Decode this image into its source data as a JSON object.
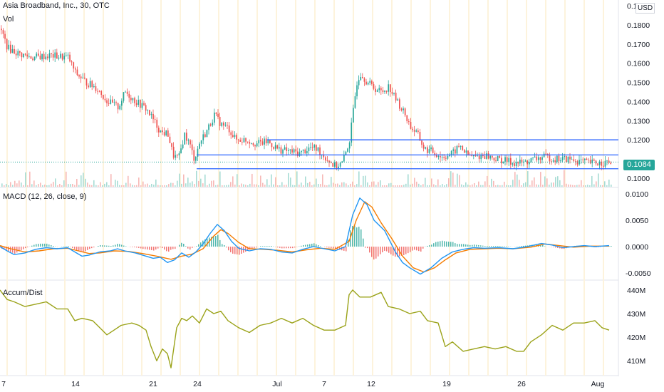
{
  "header": {
    "symbol_title": "Asia Broadband, Inc., 30, OTC",
    "volume_label": "Vol",
    "currency": "USD",
    "last_price": "0.1084"
  },
  "colors": {
    "up": "#26a69a",
    "down": "#ef5350",
    "line_blue": "#2962ff",
    "macd": "#2196f3",
    "signal": "#f57c00",
    "ad": "#9ba31a"
  },
  "chart_data": [
    {
      "type": "candlestick",
      "title": "Asia Broadband, Inc., 30, OTC",
      "x_tick_labels": [
        "7",
        "14",
        "21",
        "24",
        "Jul",
        "7",
        "12",
        "19",
        "26",
        "Aug"
      ],
      "y_tick_labels": [
        "0.1900",
        "0.1800",
        "0.1700",
        "0.1600",
        "0.1500",
        "0.1400",
        "0.1300",
        "0.1200",
        "0.1100",
        "0.1000"
      ],
      "ylim": [
        0.0955,
        0.193
      ],
      "horizontal_lines": [
        0.12,
        0.1121,
        0.1049
      ],
      "close_path": [
        [
          0,
          0.178
        ],
        [
          10,
          0.168
        ],
        [
          25,
          0.165
        ],
        [
          45,
          0.163
        ],
        [
          70,
          0.164
        ],
        [
          95,
          0.163
        ],
        [
          105,
          0.155
        ],
        [
          120,
          0.15
        ],
        [
          135,
          0.147
        ],
        [
          150,
          0.14
        ],
        [
          165,
          0.137
        ],
        [
          175,
          0.145
        ],
        [
          190,
          0.14
        ],
        [
          205,
          0.136
        ],
        [
          215,
          0.13
        ],
        [
          225,
          0.124
        ],
        [
          235,
          0.123
        ],
        [
          242,
          0.112
        ],
        [
          250,
          0.11
        ],
        [
          258,
          0.123
        ],
        [
          265,
          0.118
        ],
        [
          272,
          0.11
        ],
        [
          280,
          0.119
        ],
        [
          290,
          0.125
        ],
        [
          300,
          0.133
        ],
        [
          310,
          0.128
        ],
        [
          320,
          0.126
        ],
        [
          330,
          0.12
        ],
        [
          345,
          0.12
        ],
        [
          360,
          0.118
        ],
        [
          375,
          0.119
        ],
        [
          390,
          0.115
        ],
        [
          405,
          0.114
        ],
        [
          420,
          0.113
        ],
        [
          435,
          0.116
        ],
        [
          445,
          0.115
        ],
        [
          455,
          0.111
        ],
        [
          470,
          0.106
        ],
        [
          480,
          0.108
        ],
        [
          490,
          0.12
        ],
        [
          495,
          0.135
        ],
        [
          500,
          0.15
        ],
        [
          505,
          0.155
        ],
        [
          515,
          0.15
        ],
        [
          525,
          0.147
        ],
        [
          535,
          0.145
        ],
        [
          545,
          0.148
        ],
        [
          552,
          0.143
        ],
        [
          560,
          0.138
        ],
        [
          568,
          0.133
        ],
        [
          575,
          0.127
        ],
        [
          585,
          0.123
        ],
        [
          595,
          0.115
        ],
        [
          605,
          0.114
        ],
        [
          620,
          0.111
        ],
        [
          635,
          0.113
        ],
        [
          645,
          0.117
        ],
        [
          655,
          0.112
        ],
        [
          665,
          0.111
        ],
        [
          680,
          0.112
        ],
        [
          695,
          0.11
        ],
        [
          710,
          0.109
        ],
        [
          720,
          0.108
        ],
        [
          735,
          0.108
        ],
        [
          750,
          0.11
        ],
        [
          765,
          0.111
        ],
        [
          780,
          0.11
        ],
        [
          795,
          0.11
        ],
        [
          810,
          0.109
        ],
        [
          825,
          0.108
        ],
        [
          840,
          0.108
        ],
        [
          855,
          0.108
        ]
      ]
    },
    {
      "type": "line",
      "title": "MACD (12, 26, close, 9)",
      "y_tick_labels": [
        "0.0100",
        "0.0050",
        "0.0000",
        "-0.0050"
      ],
      "ylim": [
        -0.0062,
        0.0108
      ],
      "series": [
        {
          "name": "MACD",
          "points": [
            [
              0,
              0.0
            ],
            [
              10,
              -0.0008
            ],
            [
              20,
              -0.0015
            ],
            [
              35,
              -0.0012
            ],
            [
              50,
              -0.0005
            ],
            [
              65,
              -0.0002
            ],
            [
              80,
              -0.0004
            ],
            [
              95,
              -0.0002
            ],
            [
              105,
              -0.001
            ],
            [
              115,
              -0.0018
            ],
            [
              125,
              -0.0016
            ],
            [
              140,
              -0.001
            ],
            [
              155,
              -0.0008
            ],
            [
              165,
              -0.0004
            ],
            [
              175,
              -0.0008
            ],
            [
              190,
              -0.0012
            ],
            [
              205,
              -0.0018
            ],
            [
              215,
              -0.0022
            ],
            [
              225,
              -0.002
            ],
            [
              235,
              -0.003
            ],
            [
              245,
              -0.0025
            ],
            [
              255,
              -0.0012
            ],
            [
              265,
              -0.002
            ],
            [
              275,
              -0.001
            ],
            [
              285,
              0.0005
            ],
            [
              295,
              0.0025
            ],
            [
              305,
              0.0042
            ],
            [
              315,
              0.003
            ],
            [
              325,
              0.001
            ],
            [
              335,
              -0.0003
            ],
            [
              350,
              -0.0008
            ],
            [
              365,
              -0.0004
            ],
            [
              380,
              -0.0005
            ],
            [
              395,
              -0.001
            ],
            [
              410,
              -0.0012
            ],
            [
              425,
              -0.0005
            ],
            [
              440,
              0.0
            ],
            [
              455,
              -0.0004
            ],
            [
              470,
              -0.0008
            ],
            [
              485,
              0.0
            ],
            [
              495,
              0.006
            ],
            [
              505,
              0.0092
            ],
            [
              515,
              0.008
            ],
            [
              525,
              0.005
            ],
            [
              540,
              0.003
            ],
            [
              555,
              -0.001
            ],
            [
              565,
              -0.003
            ],
            [
              575,
              -0.004
            ],
            [
              590,
              -0.0052
            ],
            [
              605,
              -0.004
            ],
            [
              620,
              -0.0022
            ],
            [
              635,
              -0.001
            ],
            [
              650,
              -0.0005
            ],
            [
              665,
              -0.0002
            ],
            [
              680,
              -0.0003
            ],
            [
              700,
              -0.0002
            ],
            [
              720,
              -0.0004
            ],
            [
              740,
              0.0
            ],
            [
              760,
              0.0006
            ],
            [
              775,
              0.0003
            ],
            [
              790,
              -0.0002
            ],
            [
              805,
              0.0
            ],
            [
              820,
              0.0002
            ],
            [
              835,
              0.0
            ],
            [
              855,
              0.0002
            ]
          ]
        },
        {
          "name": "Signal",
          "points": [
            [
              0,
              0.0002
            ],
            [
              15,
              -0.0004
            ],
            [
              35,
              -0.001
            ],
            [
              55,
              -0.0008
            ],
            [
              75,
              -0.0004
            ],
            [
              95,
              -0.0003
            ],
            [
              110,
              -0.0008
            ],
            [
              125,
              -0.0013
            ],
            [
              140,
              -0.0012
            ],
            [
              160,
              -0.0008
            ],
            [
              180,
              -0.0009
            ],
            [
              200,
              -0.0013
            ],
            [
              220,
              -0.0018
            ],
            [
              240,
              -0.0024
            ],
            [
              255,
              -0.0018
            ],
            [
              270,
              -0.0014
            ],
            [
              285,
              -0.0004
            ],
            [
              300,
              0.002
            ],
            [
              310,
              0.0032
            ],
            [
              320,
              0.0025
            ],
            [
              335,
              0.0008
            ],
            [
              350,
              -0.0004
            ],
            [
              370,
              -0.0005
            ],
            [
              390,
              -0.0007
            ],
            [
              410,
              -0.001
            ],
            [
              430,
              -0.0006
            ],
            [
              450,
              -0.0003
            ],
            [
              470,
              -0.0005
            ],
            [
              490,
              0.001
            ],
            [
              500,
              0.005
            ],
            [
              512,
              0.0085
            ],
            [
              522,
              0.0075
            ],
            [
              535,
              0.0045
            ],
            [
              550,
              0.0015
            ],
            [
              565,
              -0.0018
            ],
            [
              580,
              -0.004
            ],
            [
              595,
              -0.0048
            ],
            [
              610,
              -0.004
            ],
            [
              625,
              -0.0025
            ],
            [
              640,
              -0.0012
            ],
            [
              660,
              -0.0005
            ],
            [
              680,
              -0.0004
            ],
            [
              700,
              -0.0003
            ],
            [
              720,
              -0.0004
            ],
            [
              745,
              -0.0001
            ],
            [
              765,
              0.0005
            ],
            [
              785,
              0.0002
            ],
            [
              805,
              -0.0001
            ],
            [
              830,
              0.0001
            ],
            [
              855,
              0.0001
            ]
          ]
        }
      ]
    },
    {
      "type": "line",
      "title": "Accum/Dist",
      "y_tick_labels": [
        "440M",
        "430M",
        "420M",
        "410M"
      ],
      "ylim": [
        404,
        443
      ],
      "series": [
        {
          "name": "Accum/Dist",
          "points": [
            [
              0,
              440
            ],
            [
              10,
              436
            ],
            [
              20,
              435
            ],
            [
              35,
              433
            ],
            [
              50,
              434
            ],
            [
              65,
              435
            ],
            [
              80,
              432
            ],
            [
              95,
              432
            ],
            [
              105,
              427
            ],
            [
              115,
              428
            ],
            [
              130,
              427
            ],
            [
              140,
              424
            ],
            [
              150,
              421
            ],
            [
              160,
              423
            ],
            [
              170,
              425
            ],
            [
              185,
              426
            ],
            [
              195,
              425
            ],
            [
              205,
              423
            ],
            [
              212,
              416
            ],
            [
              220,
              410
            ],
            [
              228,
              415
            ],
            [
              235,
              413
            ],
            [
              240,
              407
            ],
            [
              248,
              424
            ],
            [
              255,
              428
            ],
            [
              262,
              427
            ],
            [
              270,
              429
            ],
            [
              280,
              426
            ],
            [
              290,
              432
            ],
            [
              300,
              430
            ],
            [
              310,
              431
            ],
            [
              320,
              427
            ],
            [
              335,
              424
            ],
            [
              350,
              422
            ],
            [
              365,
              425
            ],
            [
              380,
              426
            ],
            [
              395,
              428
            ],
            [
              410,
              426
            ],
            [
              425,
              428
            ],
            [
              440,
              425
            ],
            [
              455,
              423
            ],
            [
              470,
              423
            ],
            [
              485,
              425
            ],
            [
              490,
              438
            ],
            [
              495,
              440
            ],
            [
              505,
              437
            ],
            [
              520,
              437
            ],
            [
              535,
              439
            ],
            [
              545,
              433
            ],
            [
              560,
              432
            ],
            [
              575,
              430
            ],
            [
              590,
              431
            ],
            [
              600,
              427
            ],
            [
              615,
              426
            ],
            [
              625,
              416
            ],
            [
              635,
              418
            ],
            [
              650,
              414
            ],
            [
              665,
              415
            ],
            [
              680,
              416
            ],
            [
              695,
              415
            ],
            [
              710,
              416
            ],
            [
              725,
              414
            ],
            [
              735,
              414
            ],
            [
              745,
              418
            ],
            [
              760,
              421
            ],
            [
              775,
              425
            ],
            [
              790,
              423
            ],
            [
              805,
              426
            ],
            [
              820,
              426
            ],
            [
              835,
              427
            ],
            [
              845,
              424
            ],
            [
              855,
              423
            ]
          ]
        }
      ]
    }
  ]
}
